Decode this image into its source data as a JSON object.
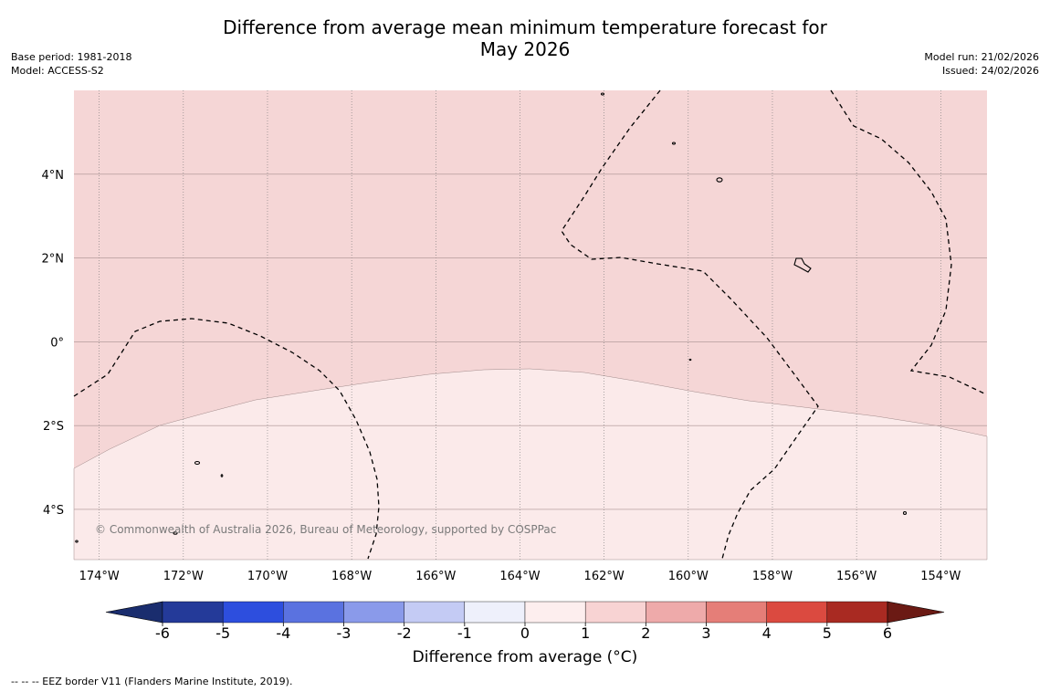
{
  "title_line1": "Difference from average mean minimum temperature forecast for",
  "title_line2": "May 2026",
  "meta_left": [
    "Base period: 1981-2018",
    "Model: ACCESS-S2"
  ],
  "meta_right": [
    "Model run: 21/02/2026",
    "Issued: 24/02/2026"
  ],
  "map": {
    "lon_range": [
      -174.6,
      -152.9
    ],
    "lat_range": [
      -5.2,
      6.0
    ],
    "lon_ticks": [
      -174,
      -172,
      -170,
      -168,
      -166,
      -164,
      -162,
      -160,
      -158,
      -156,
      -154
    ],
    "lon_tick_labels": [
      "174°W",
      "172°W",
      "170°W",
      "168°W",
      "166°W",
      "164°W",
      "162°W",
      "160°W",
      "158°W",
      "156°W",
      "154°W"
    ],
    "lat_ticks": [
      4,
      2,
      0,
      -2,
      -4
    ],
    "lat_tick_labels": [
      "4°N",
      "2°N",
      "0°",
      "2°S",
      "4°S"
    ],
    "dominant_anomaly_band": "1 to 2 °C (north)",
    "southern_anomaly_band": "0 to 1 °C (south)",
    "copyright": "© Commonwealth of Australia 2026, Bureau of Meteorology, supported by COSPPac",
    "colors": {
      "band_1_2": "#f5d6d6",
      "band_0_1": "#fbeaea"
    }
  },
  "colorbar": {
    "ticks": [
      "-6",
      "-5",
      "-4",
      "-3",
      "-2",
      "-1",
      "0",
      "1",
      "2",
      "3",
      "4",
      "5",
      "6"
    ],
    "colors": [
      "#243a99",
      "#2d4ede",
      "#5a72e0",
      "#8a9aea",
      "#c4cbf4",
      "#eef0fb",
      "#fdeeee",
      "#f8d3d3",
      "#eeaaaa",
      "#e57e78",
      "#db4a40",
      "#a92a22"
    ],
    "extend_low": "#1a2d6e",
    "extend_high": "#6b1a14",
    "title": "Difference from average (°C)"
  },
  "footnote": "-- -- -- EEZ border V11 (Flanders Marine Institute, 2019)."
}
